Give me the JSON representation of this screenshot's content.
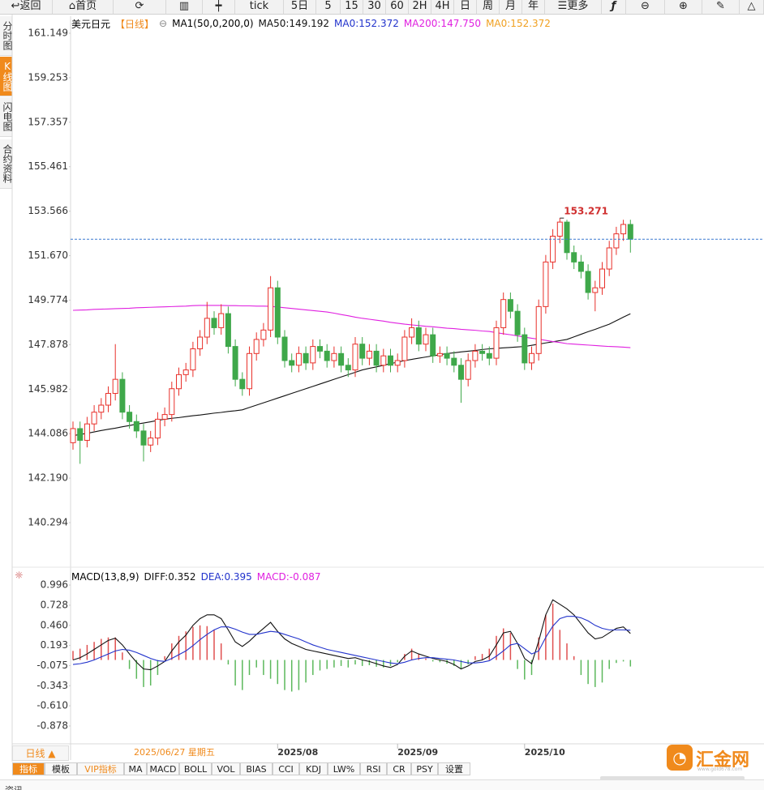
{
  "toolbar": [
    "返回",
    "首页",
    "tick",
    "5日",
    "5",
    "15",
    "30",
    "60",
    "2H",
    "4H",
    "日",
    "周",
    "月",
    "年",
    "更多"
  ],
  "sidebar": [
    "分时图",
    "K线图",
    "闪电图",
    "合约资料"
  ],
  "period_button": "日线 ▲",
  "tabs": [
    "指标",
    "模板",
    "VIP指标",
    "MA",
    "MACD",
    "BOLL",
    "VOL",
    "BIAS",
    "CCI",
    "KDJ",
    "LW%",
    "RSI",
    "CR",
    "PSY",
    "设置"
  ],
  "logo": {
    "name": "汇金网",
    "url": "www.gold678.com"
  },
  "footer": "资讯",
  "chart_data": [
    {
      "type": "candlestick",
      "title": "美元日元",
      "period": "【日线】",
      "indicator": "MA1(50,0,200,0)",
      "legend": [
        {
          "text": "MA50:149.192",
          "color": "#111111"
        },
        {
          "text": "MA0:152.372",
          "color": "#2233cc"
        },
        {
          "text": "MA200:147.750",
          "color": "#e020e0"
        },
        {
          "text": "MA0:152.372",
          "color": "#f0a020"
        }
      ],
      "cursor_date": "2025/06/27 星期五",
      "categories": [
        null,
        null,
        null,
        null,
        null,
        null,
        null,
        null,
        null,
        null,
        null,
        null,
        null,
        null,
        null,
        null,
        null,
        null,
        null,
        null,
        null,
        null,
        null,
        null,
        null,
        null,
        null,
        null,
        null,
        "2025/08",
        null,
        null,
        null,
        null,
        null,
        null,
        null,
        null,
        null,
        null,
        null,
        null,
        null,
        null,
        null,
        null,
        "2025/09",
        null,
        null,
        null,
        null,
        null,
        null,
        null,
        null,
        null,
        null,
        null,
        null,
        null,
        null,
        null,
        null,
        null,
        "2025/10",
        null,
        null,
        null,
        null,
        null,
        null,
        null,
        null,
        null,
        null,
        null,
        null,
        null,
        null,
        null
      ],
      "open": [
        143.7,
        144.3,
        143.8,
        144.5,
        145.0,
        145.3,
        145.8,
        146.4,
        145.0,
        144.6,
        144.2,
        143.6,
        143.9,
        144.7,
        144.9,
        146.0,
        146.6,
        146.8,
        147.7,
        148.2,
        149.0,
        148.6,
        149.2,
        147.8,
        146.4,
        146.0,
        147.5,
        148.1,
        148.5,
        150.3,
        148.2,
        147.2,
        147.0,
        147.5,
        147.1,
        147.8,
        147.6,
        147.2,
        147.5,
        147.0,
        146.8,
        147.9,
        147.3,
        147.6,
        147.0,
        147.4,
        147.0,
        147.2,
        148.2,
        148.6,
        147.9,
        148.3,
        147.4,
        147.5,
        147.3,
        147.0,
        146.4,
        147.2,
        147.6,
        147.5,
        147.3,
        148.6,
        149.8,
        149.3,
        148.3,
        147.1,
        147.5,
        149.5,
        151.4,
        152.5,
        153.1,
        151.8,
        151.4,
        151.0,
        150.1,
        150.3,
        151.1,
        152.0,
        152.6,
        153.0
      ],
      "high": [
        144.6,
        144.6,
        144.8,
        145.3,
        145.6,
        146.1,
        147.9,
        146.7,
        145.3,
        144.9,
        144.5,
        144.2,
        145.0,
        145.2,
        146.3,
        146.9,
        147.1,
        148.0,
        148.5,
        149.7,
        149.3,
        149.6,
        149.5,
        148.1,
        146.7,
        147.8,
        148.4,
        148.8,
        150.8,
        150.6,
        148.5,
        147.5,
        147.8,
        147.8,
        148.1,
        148.1,
        147.9,
        147.8,
        147.8,
        147.3,
        148.2,
        148.2,
        147.9,
        147.9,
        147.7,
        147.7,
        147.5,
        148.5,
        149.0,
        148.9,
        148.6,
        148.6,
        147.8,
        147.8,
        147.6,
        147.3,
        147.5,
        147.9,
        147.9,
        147.8,
        148.9,
        150.1,
        150.1,
        149.6,
        148.6,
        147.8,
        149.8,
        151.7,
        152.8,
        153.271,
        153.2,
        152.1,
        151.7,
        151.3,
        150.6,
        151.4,
        152.3,
        152.9,
        153.2,
        153.2
      ],
      "low": [
        143.4,
        142.8,
        143.5,
        144.2,
        144.7,
        145.0,
        145.5,
        144.7,
        144.3,
        143.9,
        142.9,
        143.3,
        143.6,
        144.4,
        144.6,
        145.7,
        146.3,
        146.5,
        147.4,
        147.9,
        148.3,
        148.3,
        147.5,
        146.1,
        145.7,
        145.7,
        147.2,
        147.8,
        148.2,
        147.9,
        146.9,
        146.7,
        146.7,
        146.8,
        146.8,
        147.3,
        146.9,
        146.9,
        146.7,
        146.5,
        146.5,
        147.0,
        147.0,
        146.7,
        146.7,
        146.7,
        146.7,
        146.9,
        147.9,
        147.6,
        147.6,
        147.1,
        147.1,
        147.0,
        146.7,
        145.4,
        146.1,
        146.9,
        147.2,
        147.0,
        147.0,
        148.3,
        149.0,
        148.0,
        146.8,
        146.8,
        147.2,
        149.2,
        151.1,
        152.2,
        151.5,
        151.1,
        150.7,
        149.8,
        149.3,
        150.0,
        150.8,
        151.7,
        152.3,
        151.8
      ],
      "close": [
        144.3,
        143.8,
        144.5,
        145.0,
        145.3,
        145.8,
        146.4,
        145.0,
        144.6,
        144.2,
        143.6,
        143.9,
        144.7,
        144.9,
        146.0,
        146.6,
        146.8,
        147.7,
        148.2,
        149.0,
        148.6,
        149.2,
        147.8,
        146.4,
        146.0,
        147.5,
        148.1,
        148.5,
        150.3,
        148.2,
        147.2,
        147.0,
        147.5,
        147.1,
        147.8,
        147.6,
        147.2,
        147.5,
        147.0,
        146.8,
        147.9,
        147.3,
        147.6,
        147.0,
        147.4,
        147.0,
        147.2,
        148.2,
        148.6,
        147.9,
        148.3,
        147.4,
        147.5,
        147.3,
        147.0,
        146.4,
        147.2,
        147.6,
        147.5,
        147.3,
        148.6,
        149.8,
        149.3,
        148.3,
        147.1,
        147.5,
        149.5,
        151.4,
        152.5,
        153.1,
        151.8,
        151.4,
        151.0,
        150.1,
        150.3,
        151.1,
        152.0,
        152.6,
        153.0,
        152.372
      ],
      "up_color": "#e8302a",
      "down_color": "#3fa84a",
      "last_color": "#3a78d0",
      "series": [
        {
          "color": "#111111",
          "values": [
            144.0,
            144.05,
            144.1,
            144.16,
            144.22,
            144.27,
            144.32,
            144.38,
            144.43,
            144.49,
            144.54,
            144.59,
            144.65,
            144.7,
            144.74,
            144.77,
            144.81,
            144.85,
            144.88,
            144.92,
            144.96,
            144.99,
            145.03,
            145.06,
            145.1,
            145.2,
            145.3,
            145.4,
            145.5,
            145.6,
            145.7,
            145.8,
            145.9,
            146.0,
            146.1,
            146.2,
            146.3,
            146.4,
            146.5,
            146.6,
            146.7,
            146.8,
            146.87,
            146.93,
            147.0,
            147.07,
            147.13,
            147.2,
            147.25,
            147.3,
            147.35,
            147.4,
            147.45,
            147.5,
            147.53,
            147.57,
            147.6,
            147.63,
            147.67,
            147.7,
            147.72,
            147.74,
            147.76,
            147.78,
            147.8,
            147.85,
            147.9,
            147.95,
            148.0,
            148.05,
            148.1,
            148.21,
            148.32,
            148.43,
            148.53,
            148.64,
            148.75,
            148.9,
            149.05,
            149.192
          ]
        },
        {
          "color": "#e020e0",
          "values": [
            149.34,
            149.35,
            149.36,
            149.38,
            149.39,
            149.4,
            149.41,
            149.42,
            149.43,
            149.45,
            149.46,
            149.47,
            149.48,
            149.49,
            149.5,
            149.51,
            149.52,
            149.54,
            149.55,
            149.55,
            149.55,
            149.55,
            149.54,
            149.54,
            149.53,
            149.53,
            149.52,
            149.52,
            149.51,
            149.48,
            149.45,
            149.42,
            149.39,
            149.36,
            149.33,
            149.3,
            149.27,
            149.22,
            149.16,
            149.11,
            149.05,
            149.0,
            148.96,
            148.92,
            148.88,
            148.83,
            148.79,
            148.75,
            148.72,
            148.69,
            148.66,
            148.64,
            148.61,
            148.58,
            148.56,
            148.53,
            148.51,
            148.49,
            148.46,
            148.44,
            148.39,
            148.34,
            148.3,
            148.25,
            148.2,
            148.15,
            148.11,
            148.06,
            148.01,
            147.97,
            147.92,
            147.9,
            147.88,
            147.86,
            147.84,
            147.82,
            147.8,
            147.79,
            147.77,
            147.75
          ]
        }
      ],
      "ylim": [
        138.395,
        161.874
      ],
      "yticks": [
        161.149,
        159.253,
        157.357,
        155.461,
        153.566,
        {
          "value": 151.67,
          "label": "151.670"
        },
        149.774,
        147.878,
        145.982,
        144.086,
        {
          "value": 142.19,
          "label": "142.190"
        },
        140.294
      ]
    },
    {
      "type": "macd",
      "title": "MACD(13,8,9)",
      "legend": [
        {
          "text": "DIFF:0.352",
          "color": "#111111"
        },
        {
          "text": "DEA:0.395",
          "color": "#2233cc"
        },
        {
          "text": "MACD:-0.087",
          "color": "#e020e0"
        }
      ],
      "values": [
        0.12,
        0.15,
        0.2,
        0.24,
        0.28,
        0.3,
        0.3,
        0.1,
        -0.12,
        -0.25,
        -0.36,
        -0.34,
        -0.2,
        0.05,
        0.22,
        0.32,
        0.38,
        0.44,
        0.46,
        0.45,
        0.4,
        0.22,
        -0.06,
        -0.34,
        -0.4,
        -0.2,
        -0.1,
        -0.2,
        -0.25,
        -0.32,
        -0.4,
        -0.42,
        -0.4,
        -0.3,
        -0.2,
        -0.14,
        -0.12,
        -0.1,
        -0.08,
        -0.1,
        -0.06,
        -0.08,
        -0.07,
        -0.09,
        -0.1,
        -0.08,
        -0.03,
        0.08,
        0.15,
        0.08,
        0.02,
        -0.02,
        -0.03,
        -0.05,
        -0.08,
        -0.12,
        -0.06,
        0.05,
        0.08,
        0.15,
        0.32,
        0.42,
        0.36,
        -0.12,
        -0.26,
        -0.2,
        0.3,
        0.6,
        0.75,
        0.4,
        0.22,
        0.05,
        -0.2,
        -0.32,
        -0.36,
        -0.3,
        -0.12,
        -0.04,
        -0.02,
        -0.087
      ],
      "up_color": "#e05050",
      "down_color": "#5cb85c",
      "series": [
        {
          "color": "#111111",
          "values": [
            0.0,
            0.03,
            0.08,
            0.14,
            0.2,
            0.26,
            0.29,
            0.2,
            0.08,
            -0.03,
            -0.12,
            -0.13,
            -0.08,
            -0.02,
            0.12,
            0.24,
            0.33,
            0.46,
            0.55,
            0.6,
            0.6,
            0.55,
            0.4,
            0.24,
            0.18,
            0.25,
            0.34,
            0.42,
            0.5,
            0.38,
            0.28,
            0.22,
            0.18,
            0.14,
            0.12,
            0.1,
            0.08,
            0.06,
            0.04,
            0.02,
            0.03,
            0.0,
            -0.02,
            -0.05,
            -0.08,
            -0.1,
            -0.06,
            0.05,
            0.12,
            0.08,
            0.05,
            0.02,
            0.0,
            -0.02,
            -0.06,
            -0.12,
            -0.08,
            -0.02,
            0.0,
            0.05,
            0.2,
            0.36,
            0.38,
            0.22,
            0.02,
            -0.05,
            0.25,
            0.6,
            0.8,
            0.74,
            0.68,
            0.6,
            0.48,
            0.36,
            0.28,
            0.3,
            0.36,
            0.42,
            0.44,
            0.352
          ]
        },
        {
          "color": "#2233cc",
          "values": [
            -0.06,
            -0.05,
            -0.03,
            0.0,
            0.04,
            0.08,
            0.12,
            0.14,
            0.13,
            0.1,
            0.06,
            0.02,
            -0.01,
            -0.02,
            0.02,
            0.07,
            0.12,
            0.19,
            0.27,
            0.34,
            0.4,
            0.44,
            0.44,
            0.41,
            0.37,
            0.34,
            0.34,
            0.36,
            0.38,
            0.37,
            0.34,
            0.31,
            0.28,
            0.24,
            0.2,
            0.17,
            0.14,
            0.12,
            0.1,
            0.08,
            0.06,
            0.04,
            0.02,
            0.0,
            -0.02,
            -0.04,
            -0.05,
            -0.03,
            0.0,
            0.02,
            0.03,
            0.03,
            0.02,
            0.01,
            0.0,
            -0.02,
            -0.04,
            -0.04,
            -0.03,
            -0.01,
            0.05,
            0.12,
            0.2,
            0.22,
            0.15,
            0.08,
            0.12,
            0.3,
            0.45,
            0.55,
            0.58,
            0.58,
            0.56,
            0.52,
            0.46,
            0.42,
            0.4,
            0.4,
            0.4,
            0.395
          ]
        }
      ],
      "ylim": [
        -1.083,
        1.18
      ],
      "yticks": [
        0.996,
        0.728,
        {
          "value": 0.46,
          "label": "0.460"
        },
        0.193,
        -0.075,
        -0.343,
        {
          "value": -0.61,
          "label": "-0.610"
        },
        -0.878
      ]
    }
  ]
}
